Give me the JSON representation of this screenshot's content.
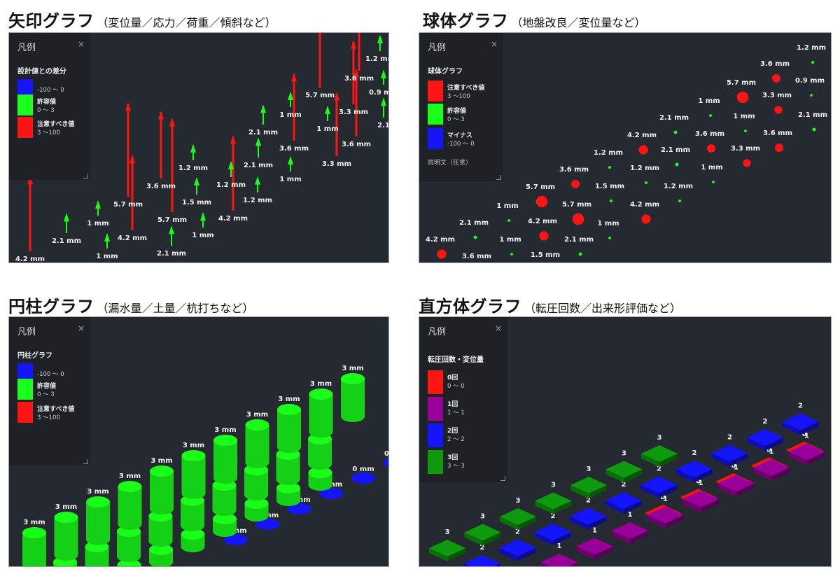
{
  "colors": {
    "red": "#ff1414",
    "green": "#19ff19",
    "blue": "#1414ff",
    "purple": "#990099",
    "darkgreen": "#0d9a0d",
    "bg": "#252a30",
    "label": "#f2f2f2"
  },
  "arrow": {
    "title": "矢印グラフ",
    "subtitle": "（変位量／応力／荷重／傾斜など）",
    "legend": {
      "title": "凡例",
      "close": "×",
      "heading": "設計値との差分",
      "items": [
        {
          "color": "#1414ff",
          "label": "",
          "range": "-100 ～ 0"
        },
        {
          "color": "#19ff19",
          "label": "許容値",
          "range": "0 ～ 3"
        },
        {
          "color": "#ff1414",
          "label": "注意すべき値",
          "range": "3 ～100"
        }
      ]
    },
    "points": [
      {
        "label": "4.2 mm",
        "kind": "red"
      },
      {
        "label": "2.1 mm",
        "kind": "green"
      },
      {
        "label": "1 mm",
        "kind": "green"
      },
      {
        "label": "1 mm",
        "kind": "green"
      },
      {
        "label": "4.2 mm",
        "kind": "red"
      },
      {
        "label": "5.7 mm",
        "kind": "red"
      },
      {
        "label": "2.1 mm",
        "kind": "green"
      },
      {
        "label": "5.7 mm",
        "kind": "red"
      },
      {
        "label": "3.6 mm",
        "kind": "red"
      },
      {
        "label": "1 mm",
        "kind": "green"
      },
      {
        "label": "1.5 mm",
        "kind": "green"
      },
      {
        "label": "1.2 mm",
        "kind": "green"
      },
      {
        "label": "4.2 mm",
        "kind": "red"
      },
      {
        "label": "1.2 mm",
        "kind": "green"
      },
      {
        "label": "1.2 mm",
        "kind": "green"
      },
      {
        "label": "2.1 mm",
        "kind": "green"
      },
      {
        "label": "2.1 mm",
        "kind": "green"
      },
      {
        "label": "1 mm",
        "kind": "green"
      },
      {
        "label": "3.6 mm",
        "kind": "red"
      },
      {
        "label": "1 mm",
        "kind": "green"
      },
      {
        "label": "3.3 mm",
        "kind": "red"
      },
      {
        "label": "5.7 mm",
        "kind": "red"
      },
      {
        "label": "1 mm",
        "kind": "green"
      },
      {
        "label": "3.6 mm",
        "kind": "red"
      },
      {
        "label": "3.3 mm",
        "kind": "red"
      },
      {
        "label": "3.6 mm",
        "kind": "red"
      },
      {
        "label": "1.2 mm",
        "kind": "green"
      },
      {
        "label": "0.9 mm",
        "kind": "green"
      },
      {
        "label": "2.1",
        "kind": "green"
      }
    ]
  },
  "sphere": {
    "title": "球体グラフ",
    "subtitle": "（地盤改良／変位量など）",
    "legend": {
      "title": "凡例",
      "close": "×",
      "heading": "球体グラフ",
      "items": [
        {
          "color": "#ff1414",
          "label": "注意すべき値",
          "range": "3 ～100"
        },
        {
          "color": "#19ff19",
          "label": "許容値",
          "range": "0 ～ 3"
        },
        {
          "color": "#1414ff",
          "label": "マイナス",
          "range": "-100 ～ 0"
        }
      ],
      "note": "説明文（任意）"
    },
    "points": [
      {
        "label": "4.2 mm",
        "kind": "red"
      },
      {
        "label": "3.6 mm",
        "kind": "red"
      },
      {
        "label": "2.1 mm",
        "kind": "green"
      },
      {
        "label": "1 mm",
        "kind": "green"
      },
      {
        "label": "1.5 mm",
        "kind": "green"
      },
      {
        "label": "1 mm",
        "kind": "green"
      },
      {
        "label": "4.2 mm",
        "kind": "red"
      },
      {
        "label": "2.1 mm",
        "kind": "green"
      },
      {
        "label": "5.7 mm",
        "kind": "red"
      },
      {
        "label": "5.7 mm",
        "kind": "red"
      },
      {
        "label": "1 mm",
        "kind": "green"
      },
      {
        "label": "3.6 mm",
        "kind": "red"
      },
      {
        "label": "1.5 mm",
        "kind": "green"
      },
      {
        "label": "4.2 mm",
        "kind": "red"
      },
      {
        "label": "1.2 mm",
        "kind": "green"
      },
      {
        "label": "1.2 mm",
        "kind": "green"
      },
      {
        "label": "1.2 mm",
        "kind": "green"
      },
      {
        "label": "4.2 mm",
        "kind": "red"
      },
      {
        "label": "2.1 mm",
        "kind": "green"
      },
      {
        "label": "1 mm",
        "kind": "green"
      },
      {
        "label": "2.1 mm",
        "kind": "green"
      },
      {
        "label": "3.6 mm",
        "kind": "red"
      },
      {
        "label": "3.3 mm",
        "kind": "red"
      },
      {
        "label": "1 mm",
        "kind": "green"
      },
      {
        "label": "5.7 mm",
        "kind": "red"
      },
      {
        "label": "1 mm",
        "kind": "green"
      },
      {
        "label": "3.6 mm",
        "kind": "red"
      },
      {
        "label": "3.3 mm",
        "kind": "red"
      },
      {
        "label": "3.6 mm",
        "kind": "red"
      },
      {
        "label": "2.1 mm",
        "kind": "green"
      },
      {
        "label": "0.9 mm",
        "kind": "green"
      },
      {
        "label": "1.2 mm",
        "kind": "green"
      }
    ]
  },
  "cylinder": {
    "title": "円柱グラフ",
    "subtitle": "（漏水量／土量／杭打ちなど）",
    "legend": {
      "title": "凡例",
      "close": "×",
      "heading": "円柱グラフ",
      "items": [
        {
          "color": "#1414ff",
          "label": "",
          "range": "-100 ～ 0"
        },
        {
          "color": "#19ff19",
          "label": "許容値",
          "range": "0 ～ 3"
        },
        {
          "color": "#ff1414",
          "label": "注意すべき値",
          "range": "3 ～100"
        }
      ]
    },
    "rows": [
      {
        "label": "3 mm",
        "value": 3,
        "count": 11
      },
      {
        "label": "2 mm",
        "value": 2,
        "count": 9
      },
      {
        "label": "1 mm",
        "value": 1,
        "count": 8
      },
      {
        "label": "0 mm",
        "value": 0,
        "count": 7
      }
    ]
  },
  "cuboid": {
    "title": "直方体グラフ",
    "subtitle": "（転圧回数／出来形評価など）",
    "legend": {
      "title": "凡例",
      "close": "×",
      "heading": "転圧回数・変位量",
      "items": [
        {
          "color": "#ff1414",
          "label": "0回",
          "range": "0 ～ 0"
        },
        {
          "color": "#990099",
          "label": "1回",
          "range": "1 ～ 1"
        },
        {
          "color": "#1414ff",
          "label": "2回",
          "range": "2 ～ 2"
        },
        {
          "color": "#0d9a0d",
          "label": "3回",
          "range": "3 ～ 3"
        }
      ]
    },
    "rows": [
      {
        "label": "3",
        "value": 3,
        "count": 7
      },
      {
        "label": "2",
        "value": 2,
        "count": 10
      },
      {
        "label": "1",
        "value": 1,
        "count": 8
      },
      {
        "label": "0",
        "value": 0,
        "count": 6
      }
    ]
  }
}
